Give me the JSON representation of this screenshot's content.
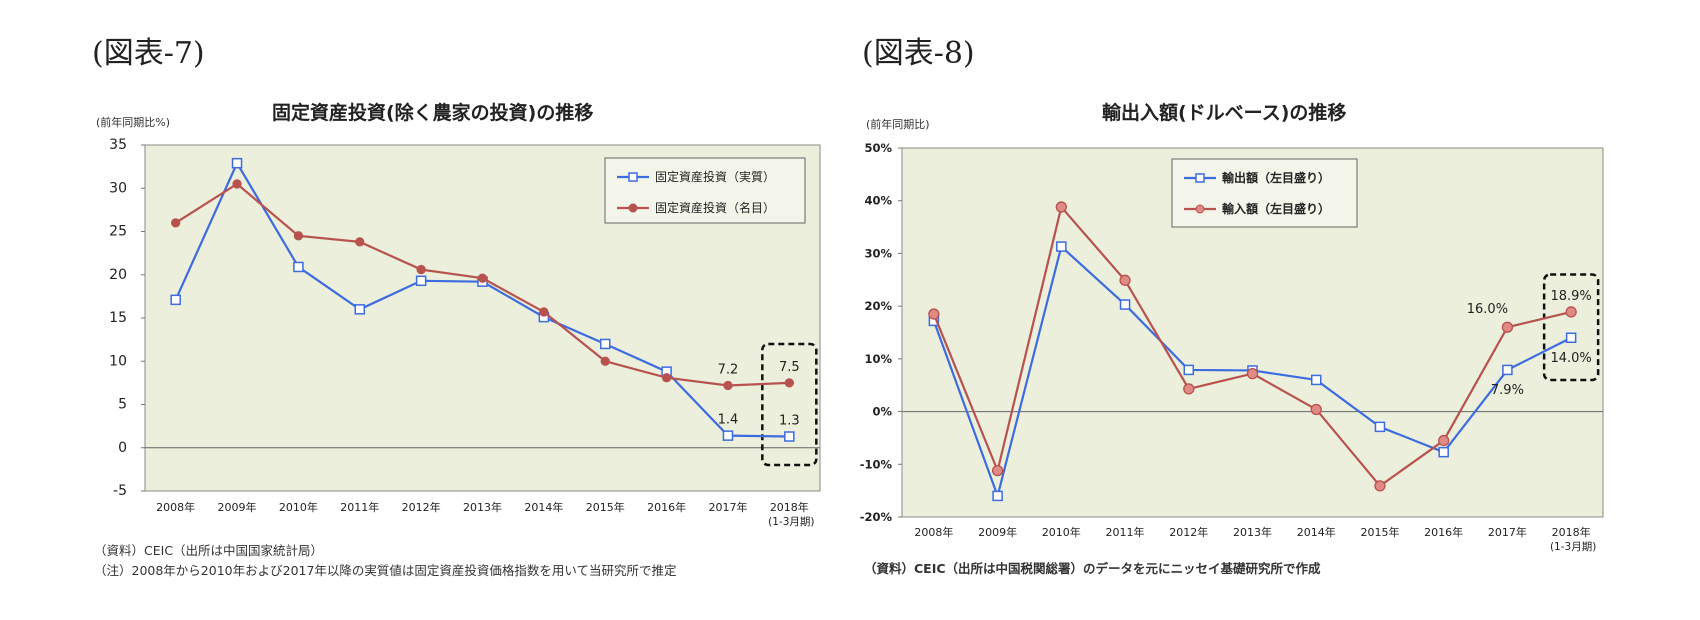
{
  "figures": [
    {
      "label": "(図表-7)"
    },
    {
      "label": "(図表-8)"
    }
  ],
  "chart_data": [
    {
      "type": "line",
      "title": "固定資産投資(除く農家の投資)の推移",
      "unit_label": "(前年同期比%)",
      "categories": [
        "2008年",
        "2009年",
        "2010年",
        "2011年",
        "2012年",
        "2013年",
        "2014年",
        "2015年",
        "2016年",
        "2017年",
        "2018年"
      ],
      "category_sublabels": [
        "",
        "",
        "",
        "",
        "",
        "",
        "",
        "",
        "",
        "",
        "(1-3月期)"
      ],
      "ylim": [
        -5,
        35
      ],
      "yticks": [
        -5,
        0,
        5,
        10,
        15,
        20,
        25,
        30,
        35
      ],
      "ytick_labels": [
        "-5",
        "0",
        "5",
        "10",
        "15",
        "20",
        "25",
        "30",
        "35"
      ],
      "grid": false,
      "legend_position": "top-right",
      "series": [
        {
          "name": "固定資産投資（実質）",
          "color": "#3d6be0",
          "marker": "square-open",
          "values": [
            17.1,
            32.9,
            20.9,
            16.0,
            19.3,
            19.2,
            15.1,
            12.0,
            8.8,
            1.4,
            1.3
          ]
        },
        {
          "name": "固定資産投資（名目）",
          "color": "#b8524e",
          "marker": "circle-filled",
          "values": [
            26.0,
            30.5,
            24.5,
            23.8,
            20.6,
            19.6,
            15.7,
            10.0,
            8.1,
            7.2,
            7.5
          ]
        }
      ],
      "annotations": [
        {
          "text": "7.2",
          "x_index": 9,
          "y": 7.2,
          "position": "above"
        },
        {
          "text": "7.5",
          "x_index": 10,
          "y": 7.5,
          "position": "above"
        },
        {
          "text": "1.4",
          "x_index": 9,
          "y": 1.4,
          "position": "above"
        },
        {
          "text": "1.3",
          "x_index": 10,
          "y": 1.3,
          "position": "above"
        }
      ],
      "highlight_box": {
        "x_index": 10,
        "y_range": [
          -2,
          12
        ]
      },
      "source": "（資料）CEIC（出所は中国国家統計局）",
      "note": "（注）2008年から2010年および2017年以降の実質値は固定資産投資価格指数を用いて当研究所で推定"
    },
    {
      "type": "line",
      "title": "輸出入額(ドルベース)の推移",
      "unit_label": "(前年同期比)",
      "categories": [
        "2008年",
        "2009年",
        "2010年",
        "2011年",
        "2012年",
        "2013年",
        "2014年",
        "2015年",
        "2016年",
        "2017年",
        "2018年"
      ],
      "category_sublabels": [
        "",
        "",
        "",
        "",
        "",
        "",
        "",
        "",
        "",
        "",
        "(1-3月期)"
      ],
      "ylim": [
        -20,
        50
      ],
      "yticks": [
        -20,
        -10,
        0,
        10,
        20,
        30,
        40,
        50
      ],
      "ytick_labels": [
        "-20%",
        "-10%",
        "0%",
        "10%",
        "20%",
        "30%",
        "40%",
        "50%"
      ],
      "grid": false,
      "legend_position": "top-left",
      "series": [
        {
          "name": "輸出額（左目盛り）",
          "color": "#3d6be0",
          "marker": "square-open",
          "values": [
            17.2,
            -16.0,
            31.3,
            20.3,
            7.9,
            7.8,
            6.0,
            -2.9,
            -7.7,
            7.9,
            14.0
          ]
        },
        {
          "name": "輸入額（左目盛り）",
          "color": "#b8524e",
          "marker": "circle-filled",
          "values": [
            18.5,
            -11.2,
            38.8,
            24.9,
            4.3,
            7.2,
            0.4,
            -14.1,
            -5.5,
            16.0,
            18.9
          ]
        }
      ],
      "annotations": [
        {
          "text": "16.0%",
          "x_index": 9,
          "y": 16.0,
          "position": "above-left"
        },
        {
          "text": "18.9%",
          "x_index": 10,
          "y": 18.9,
          "position": "above"
        },
        {
          "text": "7.9%",
          "x_index": 9,
          "y": 7.9,
          "position": "below"
        },
        {
          "text": "14.0%",
          "x_index": 10,
          "y": 14.0,
          "position": "below"
        }
      ],
      "highlight_box": {
        "x_index": 10,
        "y_range": [
          6,
          26
        ]
      },
      "source": "（資料）CEIC（出所は中国税関総署）のデータを元にニッセイ基礎研究所で作成"
    }
  ]
}
